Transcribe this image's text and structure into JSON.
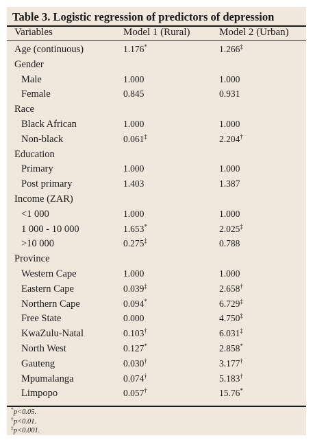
{
  "title": "Table 3. Logistic regression of predictors of depression",
  "columns": [
    "Variables",
    "Model 1 (Rural)",
    "Model 2 (Urban)"
  ],
  "rows": [
    {
      "label": "Age (continuous)",
      "indent": false,
      "m1": "1.176",
      "m1_sig": "*",
      "m2": "1.266",
      "m2_sig": "‡"
    },
    {
      "label": "Gender",
      "indent": false,
      "m1": "",
      "m1_sig": "",
      "m2": "",
      "m2_sig": ""
    },
    {
      "label": "Male",
      "indent": true,
      "m1": "1.000",
      "m1_sig": "",
      "m2": "1.000",
      "m2_sig": ""
    },
    {
      "label": "Female",
      "indent": true,
      "m1": "0.845",
      "m1_sig": "",
      "m2": "0.931",
      "m2_sig": ""
    },
    {
      "label": "Race",
      "indent": false,
      "m1": "",
      "m1_sig": "",
      "m2": "",
      "m2_sig": ""
    },
    {
      "label": "Black African",
      "indent": true,
      "m1": "1.000",
      "m1_sig": "",
      "m2": "1.000",
      "m2_sig": ""
    },
    {
      "label": "Non-black",
      "indent": true,
      "m1": "0.061",
      "m1_sig": "‡",
      "m2": "2.204",
      "m2_sig": "†"
    },
    {
      "label": "Education",
      "indent": false,
      "m1": "",
      "m1_sig": "",
      "m2": "",
      "m2_sig": ""
    },
    {
      "label": "Primary",
      "indent": true,
      "m1": "1.000",
      "m1_sig": "",
      "m2": "1.000",
      "m2_sig": ""
    },
    {
      "label": "Post primary",
      "indent": true,
      "m1": "1.403",
      "m1_sig": "",
      "m2": "1.387",
      "m2_sig": ""
    },
    {
      "label": "Income (ZAR)",
      "indent": false,
      "m1": "",
      "m1_sig": "",
      "m2": "",
      "m2_sig": ""
    },
    {
      "label": "<1 000",
      "indent": true,
      "m1": "1.000",
      "m1_sig": "",
      "m2": "1.000",
      "m2_sig": ""
    },
    {
      "label": "1 000 - 10 000",
      "indent": true,
      "m1": "1.653",
      "m1_sig": "*",
      "m2": "2.025",
      "m2_sig": "‡"
    },
    {
      "label": ">10 000",
      "indent": true,
      "m1": "0.275",
      "m1_sig": "‡",
      "m2": "0.788",
      "m2_sig": ""
    },
    {
      "label": "Province",
      "indent": false,
      "m1": "",
      "m1_sig": "",
      "m2": "",
      "m2_sig": ""
    },
    {
      "label": "Western Cape",
      "indent": true,
      "m1": "1.000",
      "m1_sig": "",
      "m2": "1.000",
      "m2_sig": ""
    },
    {
      "label": "Eastern Cape",
      "indent": true,
      "m1": "0.039",
      "m1_sig": "‡",
      "m2": "2.658",
      "m2_sig": "†"
    },
    {
      "label": "Northern Cape",
      "indent": true,
      "m1": "0.094",
      "m1_sig": "*",
      "m2": "6.729",
      "m2_sig": "‡"
    },
    {
      "label": "Free State",
      "indent": true,
      "m1": "0.000",
      "m1_sig": "",
      "m2": "4.750",
      "m2_sig": "‡"
    },
    {
      "label": "KwaZulu-Natal",
      "indent": true,
      "m1": "0.103",
      "m1_sig": "†",
      "m2": "6.031",
      "m2_sig": "‡"
    },
    {
      "label": "North West",
      "indent": true,
      "m1": "0.127",
      "m1_sig": "*",
      "m2": "2.858",
      "m2_sig": "*"
    },
    {
      "label": "Gauteng",
      "indent": true,
      "m1": "0.030",
      "m1_sig": "†",
      "m2": "3.177",
      "m2_sig": "†"
    },
    {
      "label": "Mpumalanga",
      "indent": true,
      "m1": "0.074",
      "m1_sig": "†",
      "m2": "5.183",
      "m2_sig": "†"
    },
    {
      "label": "Limpopo",
      "indent": true,
      "m1": "0.057",
      "m1_sig": "†",
      "m2": "15.76",
      "m2_sig": "*"
    }
  ],
  "footnotes": [
    {
      "mark": "*",
      "text": "p<0.05."
    },
    {
      "mark": "†",
      "text": "p<0.01."
    },
    {
      "mark": "‡",
      "text": "p<0.001."
    }
  ],
  "colors": {
    "panel_bg": "#f1e8dd",
    "text": "#1a1a1a"
  }
}
